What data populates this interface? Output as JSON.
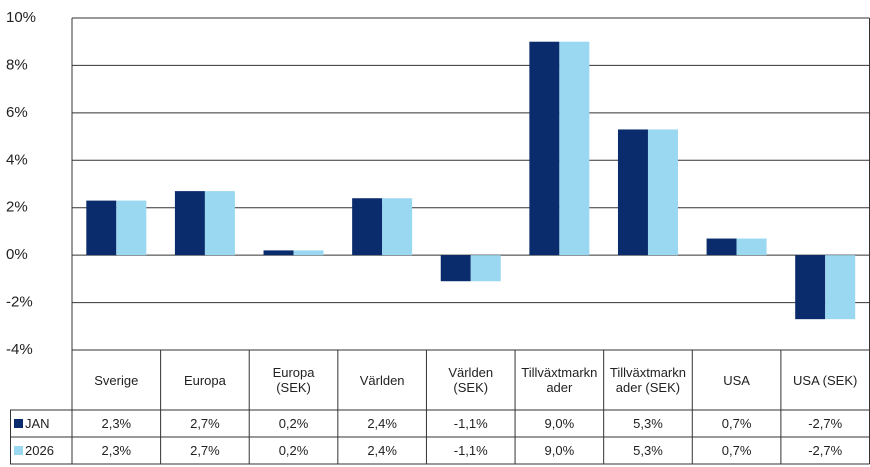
{
  "chart_data": {
    "type": "bar",
    "categories": [
      "Sverige",
      "Europa",
      "Europa (SEK)",
      "Världen",
      "Världen (SEK)",
      "Tillväxtmarknader",
      "Tillväxtmarknader (SEK)",
      "USA",
      "USA (SEK)"
    ],
    "series": [
      {
        "name": "JAN",
        "color": "#0b2c6c",
        "values": [
          2.3,
          2.7,
          0.2,
          2.4,
          -1.1,
          9.0,
          5.3,
          0.7,
          -2.7
        ],
        "value_labels": [
          "2,3%",
          "2,7%",
          "0,2%",
          "2,4%",
          "-1,1%",
          "9,0%",
          "5,3%",
          "0,7%",
          "-2,7%"
        ]
      },
      {
        "name": "2026",
        "color": "#9ad7f1",
        "values": [
          2.3,
          2.7,
          0.2,
          2.4,
          -1.1,
          9.0,
          5.3,
          0.7,
          -2.7
        ],
        "value_labels": [
          "2,3%",
          "2,7%",
          "0,2%",
          "2,4%",
          "-1,1%",
          "9,0%",
          "5,3%",
          "0,7%",
          "-2,7%"
        ]
      }
    ],
    "ylim": [
      -4,
      10
    ],
    "yticks": [
      {
        "value": -4,
        "label": "-4%"
      },
      {
        "value": -2,
        "label": "-2%"
      },
      {
        "value": 0,
        "label": "0%"
      },
      {
        "value": 2,
        "label": "2%"
      },
      {
        "value": 4,
        "label": "4%"
      },
      {
        "value": 6,
        "label": "6%"
      },
      {
        "value": 8,
        "label": "8%"
      },
      {
        "value": 10,
        "label": "10%"
      }
    ],
    "grid": true
  }
}
